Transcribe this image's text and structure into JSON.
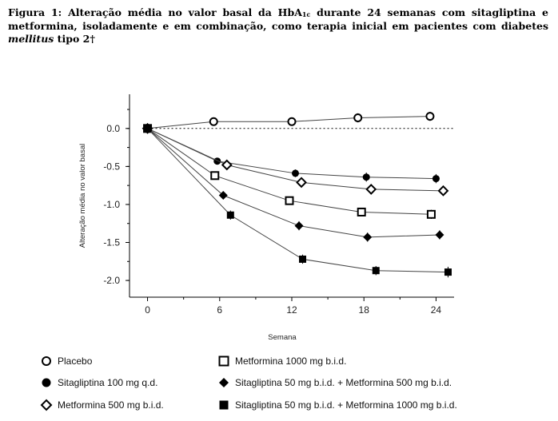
{
  "caption": {
    "prefix": "Figura 1: Alteração média no valor basal da HbA",
    "sub": "1c",
    "middle": " durante 24 semanas com sitagliptina e metformina, isoladamente e em combinação, como terapia inicial em pacientes com diabetes ",
    "italic": "mellitus",
    "suffix": " tipo 2†"
  },
  "chart_data": {
    "type": "line",
    "xlabel": "Semana",
    "ylabel": "Alteração média no valor basal",
    "xlim": [
      -1.5,
      25.5
    ],
    "ylim": [
      -2.22,
      0.45
    ],
    "x_ticks": [
      0,
      6,
      12,
      18,
      24
    ],
    "y_ticks": [
      0.0,
      -0.5,
      -1.0,
      -1.5,
      -2.0
    ],
    "y_tick_labels": [
      "0.0",
      "-0.5",
      "-1.0",
      "-1.5",
      "-2.0"
    ],
    "reference_line": {
      "y": 0.0,
      "style": "dotted"
    },
    "series": [
      {
        "name": "Placebo",
        "marker": "circle-open",
        "x": [
          0,
          5.5,
          12,
          17.5,
          23.5
        ],
        "y": [
          0,
          0.09,
          0.09,
          0.14,
          0.16
        ],
        "err": [
          0.03,
          0.04,
          0.05,
          0.06,
          0.06
        ]
      },
      {
        "name": "Sitagliptina 100 mg q.d.",
        "marker": "circle-filled",
        "x": [
          0,
          5.8,
          12.3,
          18.2,
          24
        ],
        "y": [
          0,
          -0.43,
          -0.59,
          -0.64,
          -0.66
        ],
        "err": [
          0.02,
          0.04,
          0.05,
          0.06,
          0.06
        ]
      },
      {
        "name": "Metformina 500 mg b.i.d.",
        "marker": "diamond-open",
        "x": [
          0,
          6.6,
          12.8,
          18.6,
          24.6
        ],
        "y": [
          0,
          -0.48,
          -0.71,
          -0.8,
          -0.82
        ],
        "err": [
          0.02,
          0.04,
          0.05,
          0.05,
          0.06
        ]
      },
      {
        "name": "Metformina 1000 mg b.i.d.",
        "marker": "square-open",
        "x": [
          0,
          5.6,
          11.8,
          17.8,
          23.6
        ],
        "y": [
          0,
          -0.62,
          -0.95,
          -1.1,
          -1.13
        ],
        "err": [
          0.02,
          0.04,
          0.05,
          0.05,
          0.06
        ]
      },
      {
        "name": "Sitagliptina 50 mg b.i.d. + Metformina 500 mg b.i.d.",
        "marker": "diamond-filled",
        "x": [
          0,
          6.3,
          12.6,
          18.3,
          24.3
        ],
        "y": [
          0,
          -0.88,
          -1.28,
          -1.43,
          -1.4
        ],
        "err": [
          0.02,
          0.05,
          0.06,
          0.06,
          0.06
        ]
      },
      {
        "name": "Sitagliptina 50 mg b.i.d. + Metformina 1000 mg b.i.d.",
        "marker": "square-filled",
        "x": [
          0,
          6.9,
          12.9,
          19,
          25
        ],
        "y": [
          0,
          -1.14,
          -1.72,
          -1.87,
          -1.89
        ],
        "err": [
          0.02,
          0.06,
          0.06,
          0.06,
          0.07
        ]
      }
    ]
  }
}
